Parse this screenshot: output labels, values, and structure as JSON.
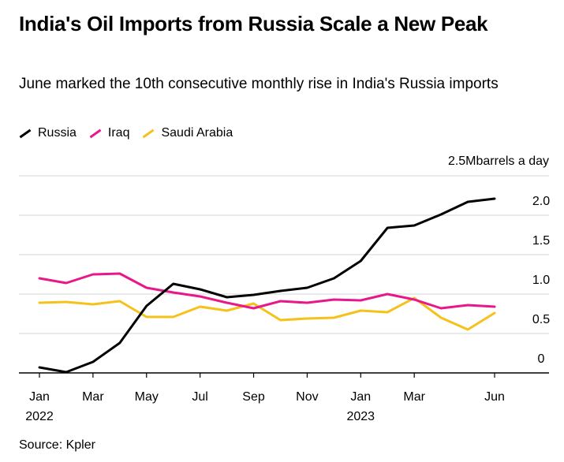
{
  "chart_data": {
    "type": "line",
    "title": "India's Oil Imports from Russia Scale a New Peak",
    "subtitle": "June marked the 10th consecutive monthly rise in India's Russia imports",
    "source": "Source: Kpler",
    "unit_label": "2.5Mbarrels a day",
    "ylim": [
      0,
      2.5
    ],
    "yticks": [
      "2.0",
      "1.5",
      "1.0",
      "0.5",
      "0"
    ],
    "ytick_values": [
      2.0,
      1.5,
      1.0,
      0.5,
      0
    ],
    "x": [
      "2022-01",
      "2022-02",
      "2022-03",
      "2022-04",
      "2022-05",
      "2022-06",
      "2022-07",
      "2022-08",
      "2022-09",
      "2022-10",
      "2022-11",
      "2022-12",
      "2023-01",
      "2023-02",
      "2023-03",
      "2023-04",
      "2023-05",
      "2023-06"
    ],
    "xticks": [
      {
        "label": "Jan",
        "index": 0,
        "year": "2022"
      },
      {
        "label": "Mar",
        "index": 2
      },
      {
        "label": "May",
        "index": 4
      },
      {
        "label": "Jul",
        "index": 6
      },
      {
        "label": "Sep",
        "index": 8
      },
      {
        "label": "Nov",
        "index": 10
      },
      {
        "label": "Jan",
        "index": 12,
        "year": "2023"
      },
      {
        "label": "Mar",
        "index": 14
      },
      {
        "label": "Jun",
        "index": 17
      }
    ],
    "grid": true,
    "legend_position": "top-left",
    "series": [
      {
        "name": "Russia",
        "color": "#000000",
        "values": [
          0.07,
          0.01,
          0.14,
          0.38,
          0.85,
          1.13,
          1.06,
          0.96,
          0.99,
          1.04,
          1.08,
          1.2,
          1.42,
          1.84,
          1.87,
          2.01,
          2.17,
          2.21
        ]
      },
      {
        "name": "Iraq",
        "color": "#e8178a",
        "values": [
          1.2,
          1.14,
          1.25,
          1.26,
          1.08,
          1.02,
          0.97,
          0.89,
          0.82,
          0.91,
          0.89,
          0.93,
          0.92,
          1.0,
          0.93,
          0.82,
          0.86,
          0.84
        ]
      },
      {
        "name": "Saudi Arabia",
        "color": "#f5c21b",
        "values": [
          0.89,
          0.9,
          0.87,
          0.91,
          0.71,
          0.71,
          0.84,
          0.79,
          0.88,
          0.67,
          0.69,
          0.7,
          0.79,
          0.77,
          0.95,
          0.7,
          0.55,
          0.76
        ]
      }
    ]
  }
}
